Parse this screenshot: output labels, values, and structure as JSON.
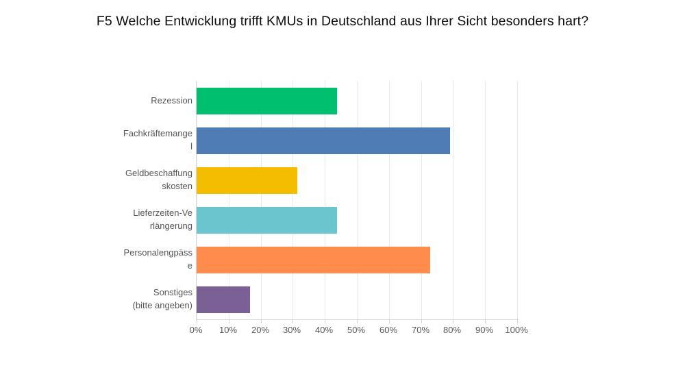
{
  "title": "F5 Welche Entwicklung trifft KMUs in Deutschland aus Ihrer Sicht besonders hart?",
  "chart_data": {
    "type": "bar",
    "orientation": "horizontal",
    "title": "F5 Welche Entwicklung trifft KMUs in Deutschland aus Ihrer Sicht besonders hart?",
    "categories": [
      "Rezession",
      "Fachkräftemangel",
      "Geldbeschaffungskosten",
      "Lieferzeiten-Verlängerung",
      "Personalengpässe",
      "Sonstiges (bitte angeben)"
    ],
    "category_display": [
      "Rezession",
      "Fachkräftemange\nl",
      "Geldbeschaffung\nskosten",
      "Lieferzeiten-Ve\nrlängerung",
      "Personalengpäss\ne",
      "Sonstiges\n(bitte angeben)"
    ],
    "values": [
      43.8,
      79.1,
      31.4,
      43.8,
      72.9,
      16.7
    ],
    "unit": "%",
    "bar_colors": [
      "#00bf6f",
      "#507cb6",
      "#f5bd00",
      "#6bc5ce",
      "#ff8c4d",
      "#7b6096"
    ],
    "xlabel": "",
    "ylabel": "",
    "xlim": [
      0,
      100
    ],
    "x_ticks": [
      "0%",
      "10%",
      "20%",
      "30%",
      "40%",
      "50%",
      "60%",
      "70%",
      "80%",
      "90%",
      "100%"
    ],
    "grid": "vertical",
    "legend": "none"
  },
  "colors": {
    "background": "#ffffff",
    "gridline": "#e9eaea",
    "axis_line": "#d8dadb",
    "tick_mark": "#cfd1d3",
    "label_text": "#54565b",
    "title_text": "#0a0a0a"
  }
}
